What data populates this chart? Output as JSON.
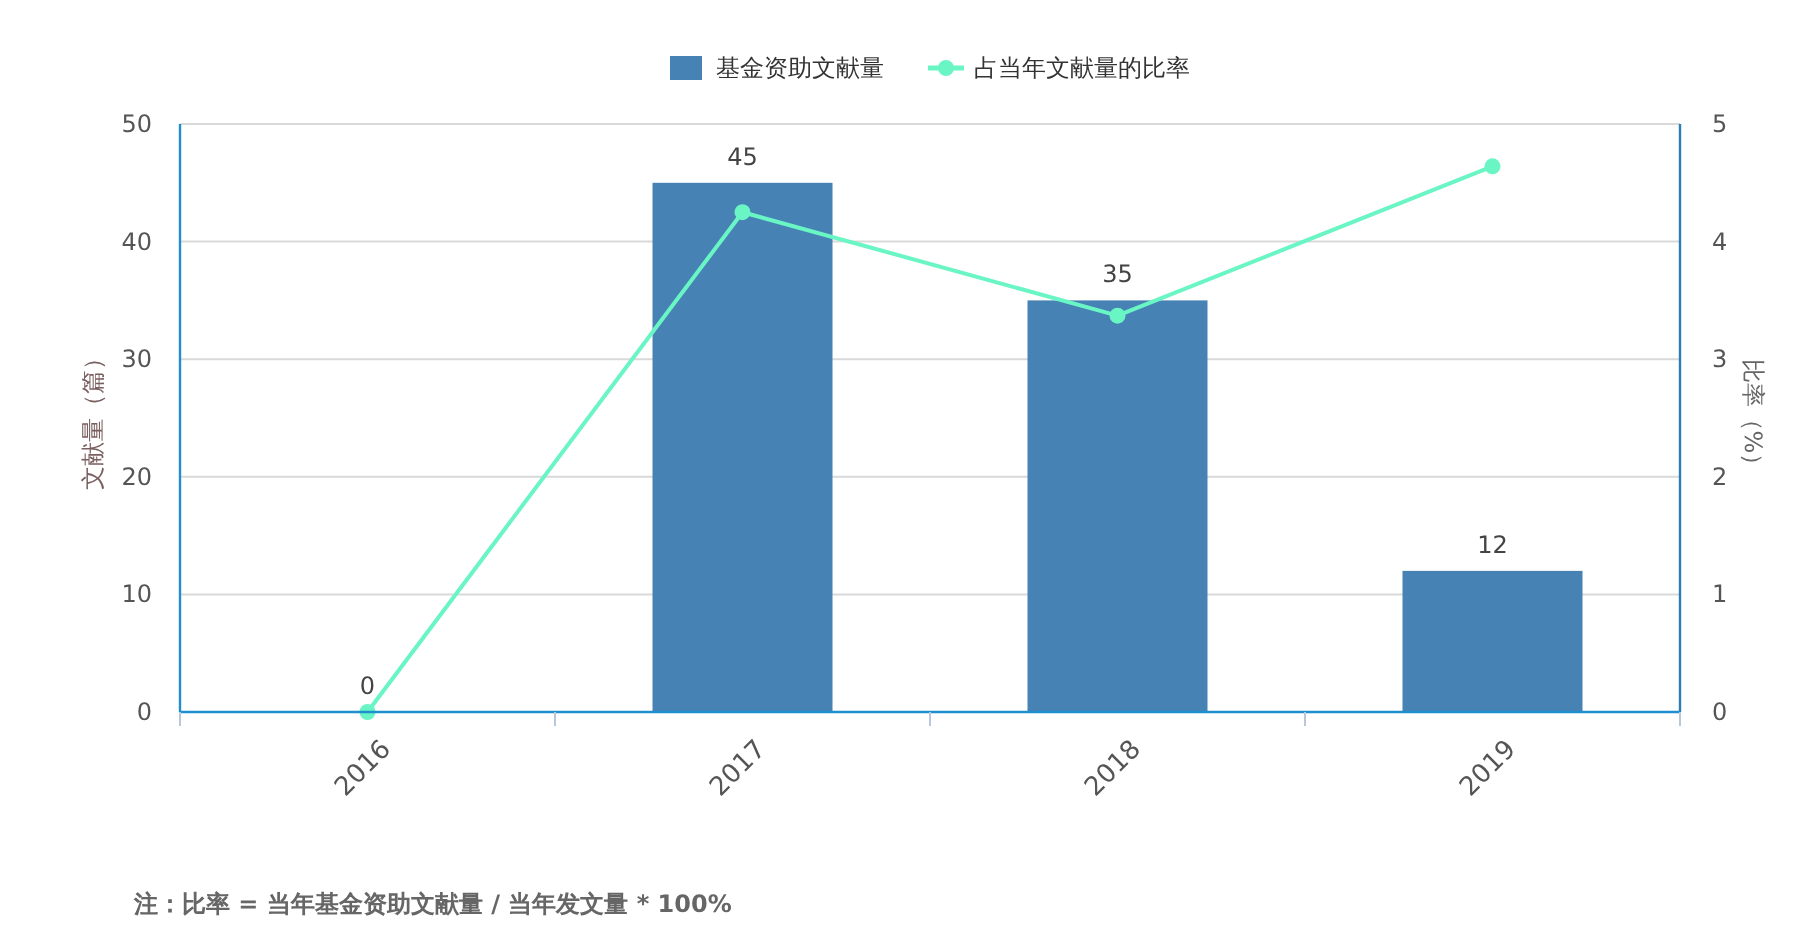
{
  "chart_data": {
    "type": "bar",
    "categories": [
      "2016",
      "2017",
      "2018",
      "2019"
    ],
    "series": [
      {
        "name": "基金资助文献量",
        "color": "#4682b4",
        "values": [
          0,
          45,
          35,
          12
        ],
        "value_labels": [
          "0",
          "45",
          "35",
          "12"
        ]
      },
      {
        "name": "占当年文献量的比率",
        "type": "line",
        "axis": "y2",
        "color": "#6af5c5",
        "marker": "circle",
        "values": [
          0,
          4.25,
          3.37,
          4.64
        ]
      }
    ],
    "ylabel": "文献量（篇）",
    "y2label": "比率（%）",
    "ylim": [
      0,
      50
    ],
    "yticks": [
      0,
      10,
      20,
      30,
      40,
      50
    ],
    "y2lim": [
      0,
      5
    ],
    "y2ticks": [
      0,
      1,
      2,
      3,
      4,
      5
    ],
    "grid": "y",
    "legend": "top",
    "annotations": [
      "注：比率 = 当年基金资助文献量 / 当年发文量 * 100%"
    ]
  }
}
